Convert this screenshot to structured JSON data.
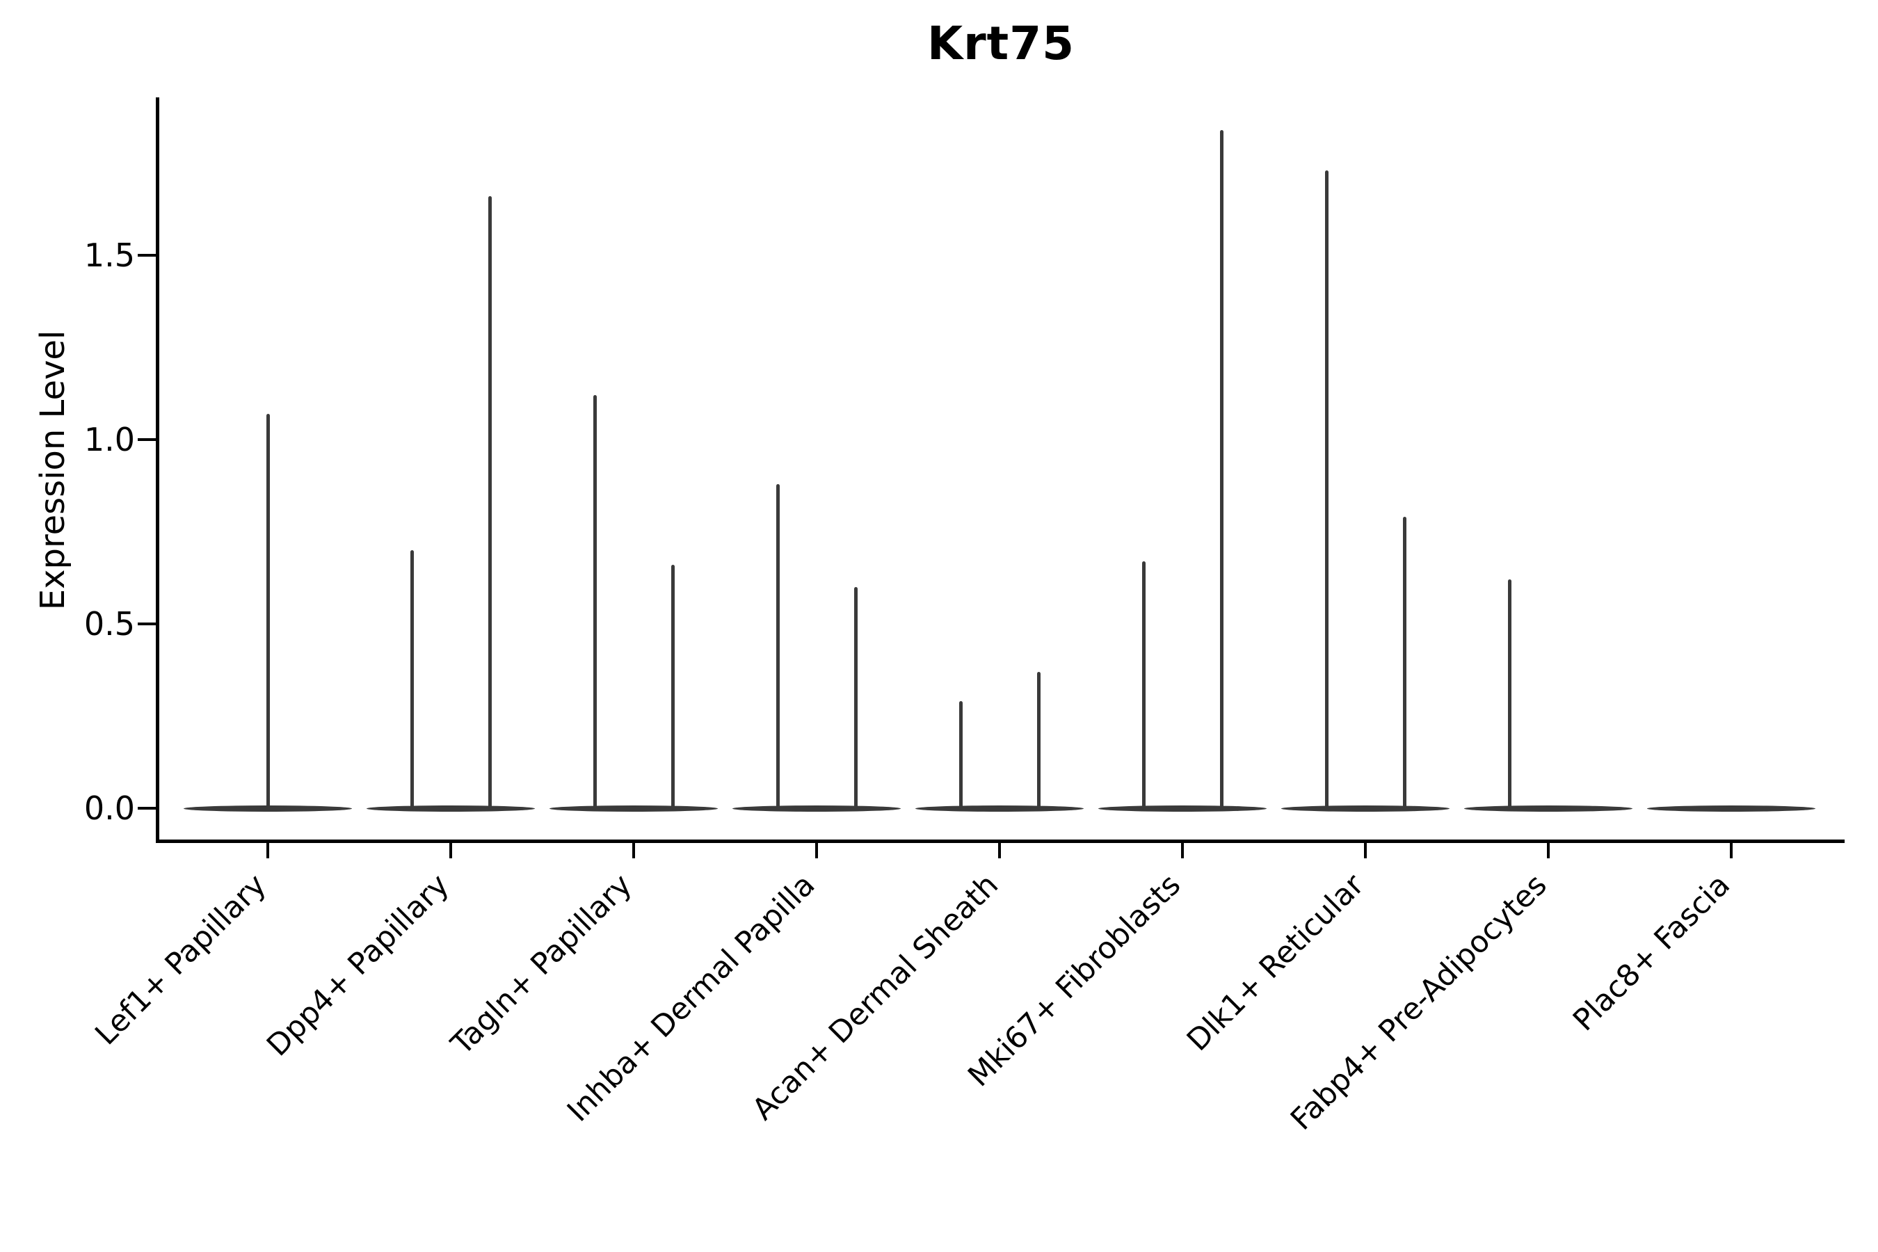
{
  "title": "Krt75",
  "ylabel": "Expression Level",
  "chart_data": {
    "type": "violin",
    "title": "Krt75",
    "xlabel": "",
    "ylabel": "Expression Level",
    "ylim": [
      0,
      1.9
    ],
    "yticks": [
      0.0,
      0.5,
      1.0,
      1.5
    ],
    "grid": false,
    "legend": "none",
    "categories": [
      "Lef1+ Papillary",
      "Dpp4+ Papillary",
      "Tagln+ Papillary",
      "Inhba+ Dermal Papilla",
      "Acan+ Dermal Sheath",
      "Mki67+ Fibroblasts",
      "Dlk1+ Reticular",
      "Fabp4+ Pre-Adipocytes",
      "Plac8+ Fascia"
    ],
    "violins": [
      {
        "category": "Lef1+ Papillary",
        "spikes": [
          {
            "position": "center",
            "max": 1.07
          }
        ]
      },
      {
        "category": "Dpp4+ Papillary",
        "spikes": [
          {
            "position": "left",
            "max": 0.7
          },
          {
            "position": "right",
            "max": 1.66
          }
        ]
      },
      {
        "category": "Tagln+ Papillary",
        "spikes": [
          {
            "position": "left",
            "max": 1.12
          },
          {
            "position": "right",
            "max": 0.66
          }
        ]
      },
      {
        "category": "Inhba+ Dermal Papilla",
        "spikes": [
          {
            "position": "left",
            "max": 0.88
          },
          {
            "position": "right",
            "max": 0.6
          }
        ]
      },
      {
        "category": "Acan+ Dermal Sheath",
        "spikes": [
          {
            "position": "left",
            "max": 0.29
          },
          {
            "position": "right",
            "max": 0.37
          }
        ]
      },
      {
        "category": "Mki67+ Fibroblasts",
        "spikes": [
          {
            "position": "left",
            "max": 0.67
          },
          {
            "position": "right",
            "max": 1.84
          }
        ]
      },
      {
        "category": "Dlk1+ Reticular",
        "spikes": [
          {
            "position": "left",
            "max": 1.73
          },
          {
            "position": "right",
            "max": 0.79
          }
        ]
      },
      {
        "category": "Fabp4+ Pre-Adipocytes",
        "spikes": [
          {
            "position": "left",
            "max": 0.62
          }
        ]
      },
      {
        "category": "Plac8+ Fascia",
        "spikes": []
      }
    ],
    "colors": {
      "violin": "#3a3a3a",
      "spine": "#000000",
      "text": "#000000",
      "background": "#ffffff"
    }
  }
}
